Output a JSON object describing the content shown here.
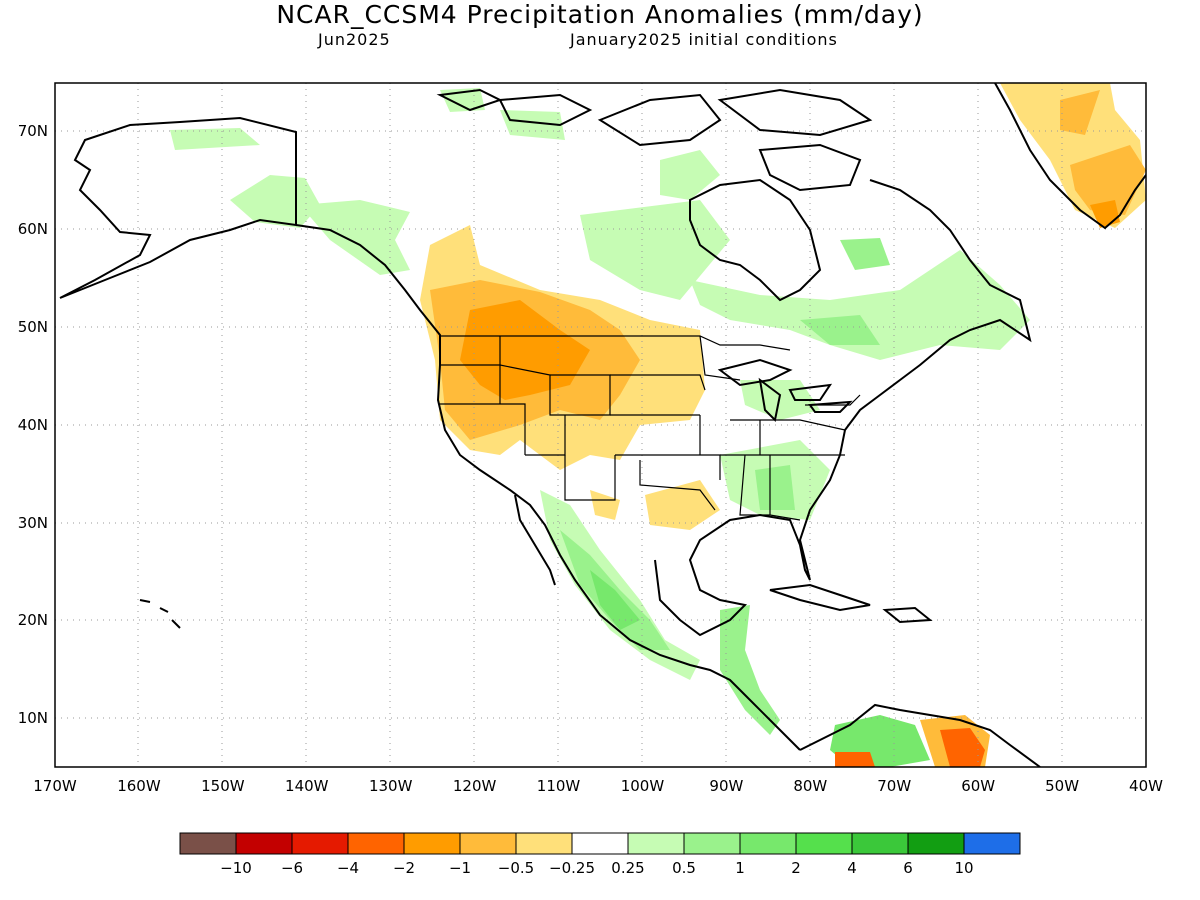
{
  "header": {
    "title": "NCAR_CCSM4 Precipitation Anomalies (mm/day)",
    "month": "Jun2025",
    "initial_conditions": "January2025 initial conditions"
  },
  "map": {
    "lon_ticks": [
      "170W",
      "160W",
      "150W",
      "140W",
      "130W",
      "120W",
      "110W",
      "100W",
      "90W",
      "80W",
      "70W",
      "60W",
      "50W",
      "40W"
    ],
    "lat_ticks": [
      "70N",
      "60N",
      "50N",
      "40N",
      "30N",
      "20N",
      "10N"
    ],
    "lon_range": [
      -170,
      -40
    ],
    "lat_range": [
      5,
      75
    ]
  },
  "colorbar": {
    "colors": [
      "#7a5048",
      "#c30000",
      "#e51a00",
      "#ff6400",
      "#ff9c00",
      "#ffbb3a",
      "#ffe07a",
      "#ffffff",
      "#c6fcb4",
      "#9af28c",
      "#77e86c",
      "#55e04c",
      "#3bc83a",
      "#129e12",
      "#1e6ee8"
    ],
    "labels": [
      "−10",
      "−6",
      "−4",
      "−2",
      "−1",
      "−0.5",
      "−0.25",
      "0.25",
      "0.5",
      "1",
      "2",
      "4",
      "6",
      "10"
    ]
  }
}
